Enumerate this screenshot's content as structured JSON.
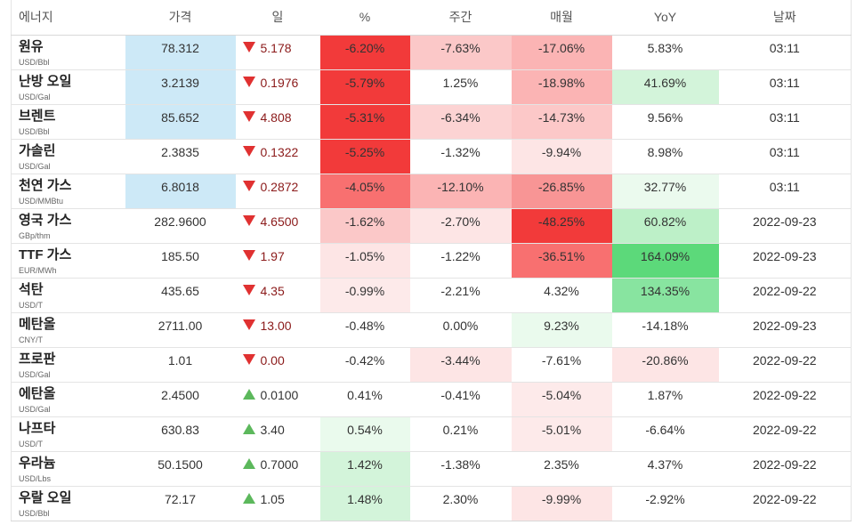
{
  "headers": [
    "에너지",
    "가격",
    "일",
    "%",
    "주간",
    "매월",
    "YoY",
    "날짜"
  ],
  "rows": [
    {
      "name": "원유",
      "unit": "USD/Bbl",
      "price": "78.312",
      "dir": "down",
      "change": "5.178",
      "pct": "-6.20%",
      "week": "-7.63%",
      "month": "-17.06%",
      "yoy": "5.83%",
      "date": "03:11",
      "price_hl": true,
      "bg": {
        "pct": "#f23a3a",
        "week": "#fbc8c8",
        "month": "#fbb4b4",
        "yoy": "#ffffff"
      }
    },
    {
      "name": "난방 오일",
      "unit": "USD/Gal",
      "price": "3.2139",
      "dir": "down",
      "change": "0.1976",
      "pct": "-5.79%",
      "week": "1.25%",
      "month": "-18.98%",
      "yoy": "41.69%",
      "date": "03:11",
      "price_hl": true,
      "bg": {
        "pct": "#f23a3a",
        "week": "#ffffff",
        "month": "#fbb4b4",
        "yoy": "#d3f4da"
      }
    },
    {
      "name": "브렌트",
      "unit": "USD/Bbl",
      "price": "85.652",
      "dir": "down",
      "change": "4.808",
      "pct": "-5.31%",
      "week": "-6.34%",
      "month": "-14.73%",
      "yoy": "9.56%",
      "date": "03:11",
      "price_hl": true,
      "bg": {
        "pct": "#f23a3a",
        "week": "#fcd3d3",
        "month": "#fcc8c8",
        "yoy": "#ffffff"
      }
    },
    {
      "name": "가솔린",
      "unit": "USD/Gal",
      "price": "2.3835",
      "dir": "down",
      "change": "0.1322",
      "pct": "-5.25%",
      "week": "-1.32%",
      "month": "-9.94%",
      "yoy": "8.98%",
      "date": "03:11",
      "price_hl": false,
      "bg": {
        "pct": "#f23a3a",
        "week": "#ffffff",
        "month": "#fde5e5",
        "yoy": "#ffffff"
      }
    },
    {
      "name": "천연 가스",
      "unit": "USD/MMBtu",
      "price": "6.8018",
      "dir": "down",
      "change": "0.2872",
      "pct": "-4.05%",
      "week": "-12.10%",
      "month": "-26.85%",
      "yoy": "32.77%",
      "date": "03:11",
      "price_hl": true,
      "bg": {
        "pct": "#f87070",
        "week": "#fbb4b4",
        "month": "#f89595",
        "yoy": "#ebfaee"
      }
    },
    {
      "name": "영국 가스",
      "unit": "GBp/thm",
      "price": "282.9600",
      "dir": "down",
      "change": "4.6500",
      "pct": "-1.62%",
      "week": "-2.70%",
      "month": "-48.25%",
      "yoy": "60.82%",
      "date": "2022-09-23",
      "price_hl": false,
      "bg": {
        "pct": "#fbc8c8",
        "week": "#fde5e5",
        "month": "#f23a3a",
        "yoy": "#bdf0c8"
      }
    },
    {
      "name": "TTF 가스",
      "unit": "EUR/MWh",
      "price": "185.50",
      "dir": "down",
      "change": "1.97",
      "pct": "-1.05%",
      "week": "-1.22%",
      "month": "-36.51%",
      "yoy": "164.09%",
      "date": "2022-09-23",
      "price_hl": false,
      "bg": {
        "pct": "#fde5e5",
        "week": "#ffffff",
        "month": "#f87070",
        "yoy": "#5cd97a"
      }
    },
    {
      "name": "석탄",
      "unit": "USD/T",
      "price": "435.65",
      "dir": "down",
      "change": "4.35",
      "pct": "-0.99%",
      "week": "-2.21%",
      "month": "4.32%",
      "yoy": "134.35%",
      "date": "2022-09-22",
      "price_hl": false,
      "bg": {
        "pct": "#fdeaea",
        "week": "#ffffff",
        "month": "#ffffff",
        "yoy": "#88e4a0"
      }
    },
    {
      "name": "메탄올",
      "unit": "CNY/T",
      "price": "2711.00",
      "dir": "down",
      "change": "13.00",
      "pct": "-0.48%",
      "week": "0.00%",
      "month": "9.23%",
      "yoy": "-14.18%",
      "date": "2022-09-23",
      "price_hl": false,
      "bg": {
        "pct": "#ffffff",
        "week": "#ffffff",
        "month": "#eafaed",
        "yoy": "#ffffff"
      }
    },
    {
      "name": "프로판",
      "unit": "USD/Gal",
      "price": "1.01",
      "dir": "down",
      "change": "0.00",
      "pct": "-0.42%",
      "week": "-3.44%",
      "month": "-7.61%",
      "yoy": "-20.86%",
      "date": "2022-09-22",
      "price_hl": false,
      "bg": {
        "pct": "#ffffff",
        "week": "#fde5e5",
        "month": "#ffffff",
        "yoy": "#fde5e5"
      }
    },
    {
      "name": "에탄올",
      "unit": "USD/Gal",
      "price": "2.4500",
      "dir": "up",
      "change": "0.0100",
      "pct": "0.41%",
      "week": "-0.41%",
      "month": "-5.04%",
      "yoy": "1.87%",
      "date": "2022-09-22",
      "price_hl": false,
      "bg": {
        "pct": "#ffffff",
        "week": "#ffffff",
        "month": "#fdeaea",
        "yoy": "#ffffff"
      }
    },
    {
      "name": "나프타",
      "unit": "USD/T",
      "price": "630.83",
      "dir": "up",
      "change": "3.40",
      "pct": "0.54%",
      "week": "0.21%",
      "month": "-5.01%",
      "yoy": "-6.64%",
      "date": "2022-09-22",
      "price_hl": false,
      "bg": {
        "pct": "#eafaed",
        "week": "#ffffff",
        "month": "#fdeaea",
        "yoy": "#ffffff"
      }
    },
    {
      "name": "우라늄",
      "unit": "USD/Lbs",
      "price": "50.1500",
      "dir": "up",
      "change": "0.7000",
      "pct": "1.42%",
      "week": "-1.38%",
      "month": "2.35%",
      "yoy": "4.37%",
      "date": "2022-09-22",
      "price_hl": false,
      "bg": {
        "pct": "#d3f4da",
        "week": "#ffffff",
        "month": "#ffffff",
        "yoy": "#ffffff"
      }
    },
    {
      "name": "우랄 오일",
      "unit": "USD/Bbl",
      "price": "72.17",
      "dir": "up",
      "change": "1.05",
      "pct": "1.48%",
      "week": "2.30%",
      "month": "-9.99%",
      "yoy": "-2.92%",
      "date": "2022-09-22",
      "price_hl": false,
      "bg": {
        "pct": "#d3f4da",
        "week": "#ffffff",
        "month": "#fde5e5",
        "yoy": "#ffffff"
      }
    }
  ]
}
